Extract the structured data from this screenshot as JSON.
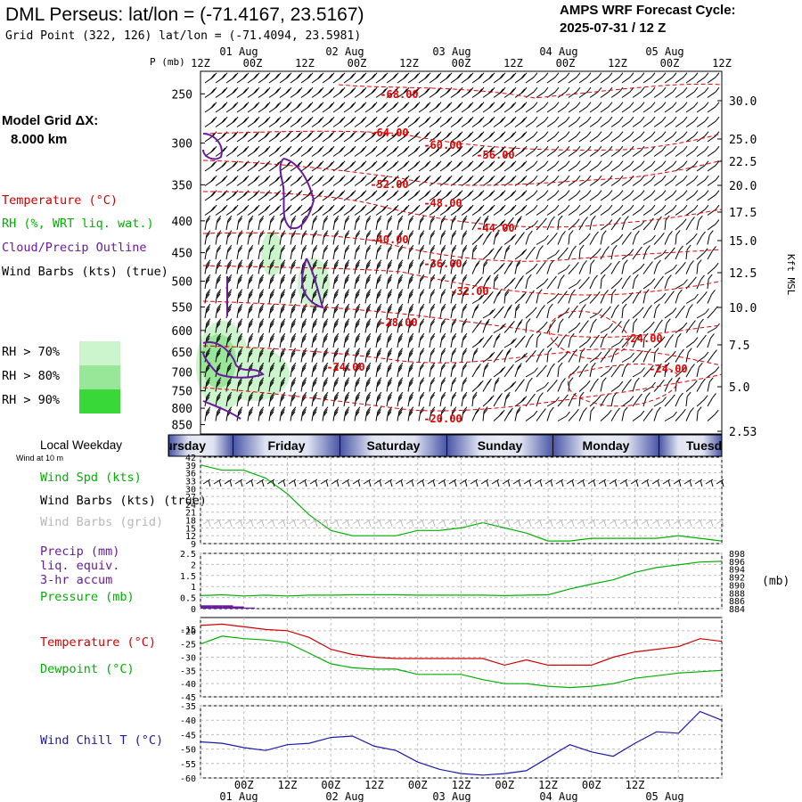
{
  "header": {
    "title": "DML Perseus:  lat/lon = (-71.4167, 23.5167)",
    "subtitle": "Grid Point (322, 126) lat/lon = (-71.4094, 23.5981)",
    "forecast_label": "AMPS WRF Forecast Cycle:",
    "cycle": "2025-07-31 / 12  Z"
  },
  "sidebar": {
    "model_grid_label": "Model Grid ΔX:",
    "model_grid_value": "8.000 km",
    "legend": [
      "Temperature (°C)",
      "RH (%, WRT liq. wat.)",
      "Cloud/Precip Outline",
      "Wind Barbs (kts) (true)"
    ],
    "rh_legend": [
      {
        "label": "RH > 70%",
        "color": "#cdf5cd"
      },
      {
        "label": "RH > 80%",
        "color": "#98e698"
      },
      {
        "label": "RH > 90%",
        "color": "#38d838"
      }
    ]
  },
  "time_axis": {
    "hour_ticks": [
      "00Z",
      "12Z",
      "00Z",
      "12Z",
      "00Z",
      "12Z",
      "00Z",
      "12Z",
      "00Z",
      "12Z"
    ],
    "top_hour_row": [
      "12Z",
      "00Z",
      "12Z",
      "00Z",
      "12Z",
      "00Z",
      "12Z",
      "00Z",
      "12Z",
      "00Z",
      "12Z"
    ],
    "day_labels": [
      "01 Aug",
      "02 Aug",
      "03 Aug",
      "04 Aug",
      "05 Aug"
    ],
    "weekdays": [
      "Thursday",
      "Friday",
      "Saturday",
      "Sunday",
      "Monday",
      "Tuesday"
    ]
  },
  "weekday_panel": {
    "title": "Local Weekday",
    "wind_note": "Wind at 10 m"
  },
  "units": {
    "pressure_left": "P (mb)",
    "height_right": "Kft MSL",
    "pressure_right": "(mb)"
  },
  "chart_data": [
    {
      "type": "heatmap",
      "title": "",
      "ylabel": "P (mb)",
      "y2label": "Kft MSL",
      "ylim": [
        880,
        230
      ],
      "pressure_ticks": [
        250,
        300,
        350,
        400,
        450,
        500,
        550,
        600,
        650,
        700,
        750,
        800,
        850
      ],
      "height_ticks": [
        "30.0",
        "25.0",
        "22.5",
        "20.0",
        "17.5",
        "15.0",
        "12.5",
        "10.0",
        "7.5",
        "5.0",
        "2.53"
      ],
      "temperature_contour_labels": [
        "-68.00",
        "-64.00",
        "-60.00",
        "-56.00",
        "-52.00",
        "-48.00",
        "-44.00",
        "-40.00",
        "-36.00",
        "-32.00",
        "-28.00",
        "-24.00",
        "-24.00",
        "-24.00",
        "-20.00",
        "-28.00"
      ],
      "contour_colors": {
        "temperature": "#e00000",
        "cloud": "#6a1aa0",
        "rh": "#38d838"
      }
    },
    {
      "type": "line",
      "title": "",
      "series": [
        {
          "name": "Wind Spd (kts)",
          "color": "#00b000",
          "x": [
            0,
            6,
            12,
            18,
            24,
            30,
            36,
            42,
            48,
            54,
            60,
            66,
            72,
            78,
            84,
            90,
            96,
            102,
            108,
            114,
            120,
            126,
            132,
            138,
            144
          ],
          "values": [
            39,
            37,
            37,
            34,
            28,
            20,
            14,
            12,
            12,
            12,
            14,
            14,
            15,
            17,
            15,
            13,
            10,
            10,
            11,
            11,
            11,
            11,
            12,
            11,
            10
          ]
        }
      ],
      "ylim": [
        9,
        42
      ],
      "yticks": [
        9,
        12,
        15,
        18,
        21,
        24,
        27,
        30,
        33,
        36,
        39,
        42
      ]
    },
    {
      "type": "line",
      "title": "",
      "series": [
        {
          "name": "Pressure (mb)",
          "color": "#00b000",
          "x": [
            0,
            6,
            12,
            18,
            24,
            30,
            36,
            42,
            48,
            54,
            60,
            66,
            72,
            78,
            84,
            90,
            96,
            102,
            108,
            114,
            120,
            126,
            132,
            138,
            144
          ],
          "values": [
            887.3,
            887.5,
            887.2,
            887.4,
            887.2,
            887.4,
            887.4,
            887.5,
            887.5,
            887.5,
            887.4,
            887.4,
            887.4,
            887.4,
            887.3,
            887.4,
            887.5,
            889.0,
            890.2,
            891.3,
            893.2,
            894.4,
            895.1,
            895.8,
            896.0
          ]
        },
        {
          "name": "Precip (mm)",
          "color": "#6a1aa0",
          "type": "bar",
          "x": [
            0,
            3,
            6,
            9,
            12
          ],
          "values": [
            0.15,
            0.15,
            0.15,
            0.1,
            0.05
          ]
        }
      ],
      "ylim": [
        0,
        2.5
      ],
      "yticks": [
        0.0,
        0.5,
        1.0,
        1.5,
        2.0,
        2.5
      ],
      "y2ticks": [
        884,
        886,
        888,
        890,
        892,
        894,
        896,
        898
      ],
      "y2label": "(mb)"
    },
    {
      "type": "line",
      "title": "",
      "series": [
        {
          "name": "Temperature (°C)",
          "color": "#d00000",
          "x": [
            0,
            6,
            12,
            18,
            24,
            30,
            36,
            42,
            48,
            54,
            60,
            66,
            72,
            78,
            84,
            90,
            96,
            102,
            108,
            114,
            120,
            126,
            132,
            138,
            144
          ],
          "values": [
            -18,
            -17.5,
            -18.5,
            -19.5,
            -20,
            -22.5,
            -27,
            -29,
            -30,
            -30.5,
            -30.5,
            -30.5,
            -30.5,
            -30.5,
            -33,
            -31,
            -33,
            -33,
            -33,
            -30,
            -28,
            -27,
            -26,
            -23,
            -24
          ]
        },
        {
          "name": "Dewpoint (°C)",
          "color": "#00b000",
          "x": [
            0,
            6,
            12,
            18,
            24,
            30,
            36,
            42,
            48,
            54,
            60,
            66,
            72,
            78,
            84,
            90,
            96,
            102,
            108,
            114,
            120,
            126,
            132,
            138,
            144
          ],
          "values": [
            -25,
            -22,
            -23,
            -23.5,
            -24.5,
            -28.5,
            -32.5,
            -34,
            -34.5,
            -34.5,
            -36.5,
            -36.5,
            -36.5,
            -38.5,
            -40,
            -40,
            -41,
            -41.5,
            -41,
            -40,
            -38,
            -37,
            -36,
            -35.5,
            -35
          ]
        }
      ],
      "ylim": [
        -45,
        -15
      ],
      "yticks": [
        -45,
        -40,
        -35,
        -30,
        -25,
        -20
      ]
    },
    {
      "type": "line",
      "title": "",
      "series": [
        {
          "name": "Wind Chill T (°C)",
          "color": "#1a1aa8",
          "x": [
            0,
            6,
            12,
            18,
            24,
            30,
            36,
            42,
            48,
            54,
            60,
            66,
            72,
            78,
            84,
            90,
            96,
            102,
            108,
            114,
            120,
            126,
            132,
            138,
            144
          ],
          "values": [
            -47.5,
            -48,
            -49.5,
            -50.5,
            -48.5,
            -48,
            -46,
            -45.5,
            -49,
            -50.5,
            -54.5,
            -57,
            -58.5,
            -59,
            -58.5,
            -57.5,
            -53,
            -48.5,
            -51,
            -52.5,
            -48,
            -44,
            -44.5,
            -37,
            -40
          ]
        }
      ],
      "ylim": [
        -60,
        -35
      ],
      "yticks": [
        -60,
        -55,
        -50,
        -45,
        -40,
        -35
      ]
    }
  ]
}
